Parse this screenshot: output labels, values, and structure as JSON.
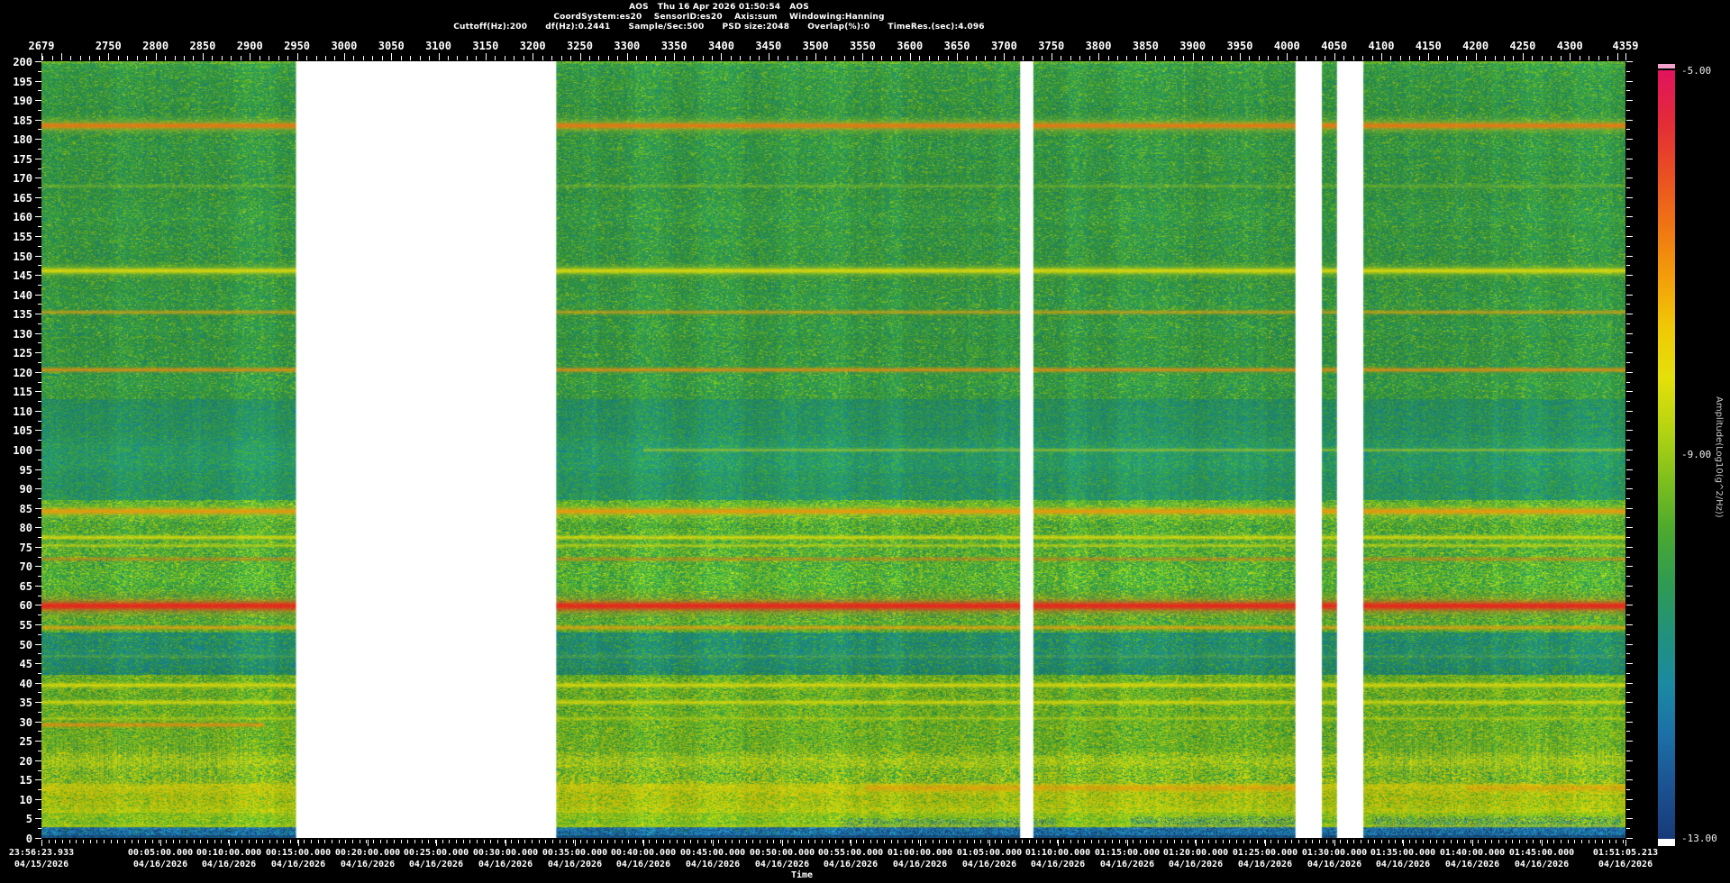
{
  "header": {
    "line1": "AOS   Thu 16 Apr 2026 01:50:54   AOS",
    "line2": "CoordSystem:es20    SensorID:es20    Axis:sum    Windowing:Hanning",
    "line3": "Cuttoff(Hz):200      df(Hz):0.2441      Sample/Sec:500      PSD size:2048      Overlap(%):0      TimeRes.(sec):4.096"
  },
  "colorbar": {
    "labels": [
      "-5.00",
      "-9.00",
      "-13.00"
    ],
    "title": "Amplitude(Log10(g^2/Hz))",
    "top_cap_color": "#f2a2ca",
    "bottom_cap_color": "#ffffff",
    "stops": [
      "#e1135e",
      "#e32b38",
      "#e94e22",
      "#ef7314",
      "#f39c0a",
      "#f0c806",
      "#e4e00a",
      "#b5d411",
      "#7fbf1d",
      "#4aa92e",
      "#2f9b52",
      "#21917b",
      "#1b89a2",
      "#1c6fa6",
      "#1b5291",
      "#173a78"
    ]
  },
  "chart_data": {
    "type": "heatmap",
    "subtype": "spectrogram",
    "title": "AOS  Thu 16 Apr 2026 01:50:54  AOS",
    "grid": false,
    "legend_position": "colorbar-right",
    "x_axis": {
      "label": "Time",
      "record_start": 2679,
      "record_end": 4359,
      "record_tick_labels": [
        "2679",
        "2750",
        "2800",
        "2850",
        "2900",
        "2950",
        "3000",
        "3050",
        "3100",
        "3150",
        "3200",
        "3250",
        "3300",
        "3350",
        "3400",
        "3450",
        "3500",
        "3550",
        "3600",
        "3650",
        "3700",
        "3750",
        "3800",
        "3850",
        "3900",
        "3950",
        "4000",
        "4050",
        "4100",
        "4150",
        "4200",
        "4250",
        "4300",
        "4359"
      ],
      "minor_tick_step_records": 10,
      "major_tick_step_records": 50,
      "duration_sec": 6881.3,
      "minor_tick_step_sec": 30,
      "time_labels": [
        {
          "time": "23:56:23.933",
          "date": "04/15/2026",
          "sec": 0
        },
        {
          "time": "00:05:00.000",
          "date": "04/16/2026",
          "sec": 516.1
        },
        {
          "time": "00:10:00.000",
          "date": "04/16/2026",
          "sec": 816.1
        },
        {
          "time": "00:15:00.000",
          "date": "04/16/2026",
          "sec": 1116.1
        },
        {
          "time": "00:20:00.000",
          "date": "04/16/2026",
          "sec": 1416.1
        },
        {
          "time": "00:25:00.000",
          "date": "04/16/2026",
          "sec": 1716.1
        },
        {
          "time": "00:30:00.000",
          "date": "04/16/2026",
          "sec": 2016.1
        },
        {
          "time": "00:35:00.000",
          "date": "04/16/2026",
          "sec": 2316.1
        },
        {
          "time": "00:40:00.000",
          "date": "04/16/2026",
          "sec": 2616.1
        },
        {
          "time": "00:45:00.000",
          "date": "04/16/2026",
          "sec": 2916.1
        },
        {
          "time": "00:50:00.000",
          "date": "04/16/2026",
          "sec": 3216.1
        },
        {
          "time": "00:55:00.000",
          "date": "04/16/2026",
          "sec": 3516.1
        },
        {
          "time": "01:00:00.000",
          "date": "04/16/2026",
          "sec": 3816.1
        },
        {
          "time": "01:05:00.000",
          "date": "04/16/2026",
          "sec": 4116.1
        },
        {
          "time": "01:10:00.000",
          "date": "04/16/2026",
          "sec": 4416.1
        },
        {
          "time": "01:15:00.000",
          "date": "04/16/2026",
          "sec": 4716.1
        },
        {
          "time": "01:20:00.000",
          "date": "04/16/2026",
          "sec": 5016.1
        },
        {
          "time": "01:25:00.000",
          "date": "04/16/2026",
          "sec": 5316.1
        },
        {
          "time": "01:30:00.000",
          "date": "04/16/2026",
          "sec": 5616.1
        },
        {
          "time": "01:35:00.000",
          "date": "04/16/2026",
          "sec": 5916.1
        },
        {
          "time": "01:40:00.000",
          "date": "04/16/2026",
          "sec": 6216.1
        },
        {
          "time": "01:45:00.000",
          "date": "04/16/2026",
          "sec": 6516.1
        },
        {
          "time": "01:51:05.213",
          "date": "04/16/2026",
          "sec": 6881.3
        }
      ]
    },
    "y_axis": {
      "unit": "Hz",
      "min": 0,
      "max": 200,
      "tick_step": 5,
      "minor_tick_step": 2.5,
      "tick_labels": [
        "200",
        "195",
        "190",
        "185",
        "180",
        "175",
        "170",
        "165",
        "160",
        "155",
        "150",
        "145",
        "140",
        "135",
        "130",
        "125",
        "120",
        "115",
        "110",
        "105",
        "100",
        "95",
        "90",
        "85",
        "80",
        "75",
        "70",
        "65",
        "60",
        "55",
        "50",
        "45",
        "40",
        "35",
        "30",
        "25",
        "20",
        "15",
        "10",
        "5",
        "0"
      ]
    },
    "z_axis": {
      "label": "Amplitude(Log10(g^2/Hz))",
      "max": -5.0,
      "mid": -9.0,
      "min": -13.0
    },
    "gaps_records": [
      [
        2949,
        3225
      ],
      [
        3717,
        3731
      ],
      [
        4009,
        4037
      ],
      [
        4053,
        4081
      ]
    ],
    "tonals": [
      {
        "f": 183.6,
        "hw": 0.5,
        "color": "#ee7311",
        "alpha": 0.92,
        "halo": "#e6d80c"
      },
      {
        "f": 168.0,
        "hw": 0.3,
        "color": "#c9d80e",
        "alpha": 0.3
      },
      {
        "f": 146.2,
        "hw": 0.45,
        "color": "#e4dc0a",
        "alpha": 0.88,
        "halo": "#bcd410"
      },
      {
        "f": 135.5,
        "hw": 0.35,
        "color": "#f0a30a",
        "alpha": 0.68
      },
      {
        "f": 120.6,
        "hw": 0.4,
        "color": "#f08c0e",
        "alpha": 0.82
      },
      {
        "f": 99.9,
        "hw": 0.28,
        "color": "#d8d80c",
        "alpha": 0.5,
        "x0": 0.38,
        "x1": 1
      },
      {
        "f": 84.2,
        "hw": 0.5,
        "color": "#f2940c",
        "alpha": 0.88,
        "halo": "#e4dc0a"
      },
      {
        "f": 77.6,
        "hw": 0.38,
        "color": "#e4dc0a",
        "alpha": 0.85
      },
      {
        "f": 75.5,
        "hw": 0.3,
        "color": "#dcd90c",
        "alpha": 0.62
      },
      {
        "f": 71.9,
        "hw": 0.35,
        "color": "#ee7311",
        "alpha": 0.55
      },
      {
        "f": 59.8,
        "hw": 0.7,
        "color": "#e8231c",
        "alpha": 1.0,
        "halo": "#f07a10"
      },
      {
        "f": 54.2,
        "hw": 0.38,
        "color": "#f0a30a",
        "alpha": 0.78
      },
      {
        "f": 46.8,
        "hw": 0.3,
        "color": "#b8d412",
        "alpha": 0.3,
        "speckle": true
      },
      {
        "f": 39.5,
        "hw": 0.42,
        "color": "#e4dc0a",
        "alpha": 0.85
      },
      {
        "f": 35.1,
        "hw": 0.38,
        "color": "#e4dc0a",
        "alpha": 0.78
      },
      {
        "f": 30.8,
        "hw": 0.3,
        "color": "#d0d80d",
        "alpha": 0.5
      },
      {
        "f": 29.2,
        "hw": 0.38,
        "color": "#f08c0e",
        "alpha": 0.8,
        "x0": 0,
        "x1": 0.14
      },
      {
        "f": 19.8,
        "hw": 1.2,
        "color": "#dcd90c",
        "alpha": 0.5,
        "speckle": true
      },
      {
        "f": 13.1,
        "hw": 1.0,
        "color": "#e6ca0a",
        "alpha": 0.6,
        "speckle": true
      },
      {
        "f": 13.0,
        "hw": 0.5,
        "color": "#f0820e",
        "alpha": 0.75,
        "x0": 0.52,
        "x1": 0.8,
        "speckle": true
      },
      {
        "f": 13.0,
        "hw": 0.5,
        "color": "#f0820e",
        "alpha": 0.65,
        "x0": 0.9,
        "x1": 1,
        "speckle": true
      },
      {
        "f": 7.0,
        "hw": 1.3,
        "color": "#c6d30d",
        "alpha": 0.38,
        "speckle": true
      },
      {
        "f": 3.2,
        "hw": 0.3,
        "color": "#c9d80e",
        "alpha": 0.45
      }
    ],
    "bands": [
      {
        "fmin": 113,
        "fmax": 200.1,
        "colors": [
          "#2e9a48",
          "#27935e",
          "#3aa33c",
          "#54b12f",
          "#6fbc26",
          "#1f8d72",
          "#8cc41f"
        ],
        "weights": [
          26,
          16,
          20,
          14,
          7,
          12,
          5
        ]
      },
      {
        "fmin": 87,
        "fmax": 113,
        "colors": [
          "#21906a",
          "#1d8a78",
          "#2f9a4e",
          "#3ba23e",
          "#15809a",
          "#4aa832",
          "#27935e"
        ],
        "weights": [
          26,
          18,
          16,
          12,
          8,
          10,
          10
        ]
      },
      {
        "fmin": 53,
        "fmax": 87,
        "colors": [
          "#3fa43a",
          "#56b22e",
          "#76c023",
          "#2b9553",
          "#97c91a",
          "#21906c",
          "#b4d013"
        ],
        "weights": [
          24,
          20,
          16,
          14,
          12,
          8,
          6
        ]
      },
      {
        "fmin": 42,
        "fmax": 53,
        "colors": [
          "#1f8d78",
          "#17878f",
          "#27935f",
          "#3fa43a",
          "#56b22e",
          "#13809f"
        ],
        "weights": [
          30,
          16,
          20,
          16,
          9,
          9
        ]
      },
      {
        "fmin": 22,
        "fmax": 42,
        "colors": [
          "#5cb42c",
          "#7cc120",
          "#a2cb15",
          "#45aa38",
          "#2b9553",
          "#c4d20d"
        ],
        "weights": [
          24,
          22,
          16,
          16,
          10,
          12
        ]
      },
      {
        "fmin": 14,
        "fmax": 22,
        "colors": [
          "#6fbc26",
          "#97c91a",
          "#c4d20d",
          "#45aa38",
          "#2b9553",
          "#dcd90a"
        ],
        "weights": [
          22,
          20,
          16,
          18,
          12,
          12
        ]
      },
      {
        "fmin": 6.5,
        "fmax": 14,
        "colors": [
          "#a2cb15",
          "#c4d20d",
          "#dcd90a",
          "#76c023",
          "#56b22e",
          "#e8c80a"
        ],
        "weights": [
          22,
          24,
          18,
          14,
          12,
          10
        ]
      },
      {
        "fmin": 2.8,
        "fmax": 6.5,
        "colors": [
          "#7cc120",
          "#a2cb15",
          "#56b22e",
          "#c4d20d",
          "#45aa38"
        ],
        "weights": [
          26,
          24,
          20,
          16,
          14
        ]
      },
      {
        "fmin": 0,
        "fmax": 2.8,
        "colors": [
          "#1a63a0",
          "#1f86c0",
          "#15497e",
          "#27a0d0",
          "#1d8a74",
          "#2278b2"
        ],
        "weights": [
          28,
          20,
          18,
          10,
          10,
          14
        ]
      }
    ],
    "stripe_regions": [
      {
        "x0": 0,
        "x1": 0.137,
        "f0": 13,
        "f1": 28,
        "strength": 0.5
      },
      {
        "x0": 0.33,
        "x1": 0.52,
        "f0": 15,
        "f1": 26,
        "strength": 0.26
      },
      {
        "x0": 0.845,
        "x1": 1.0,
        "f0": 13,
        "f1": 28,
        "strength": 0.45
      }
    ],
    "blue_patches": [
      {
        "x0": 0.505,
        "x1": 0.64,
        "fmax": 5.0
      },
      {
        "x0": 0.688,
        "x1": 0.792,
        "fmax": 5.5
      },
      {
        "x0": 0.84,
        "x1": 0.997,
        "fmax": 5.5
      }
    ],
    "streaks": [
      {
        "x": 0.721,
        "f1": 130,
        "a": 0.26
      },
      {
        "x": 0.893,
        "f1": 140,
        "a": 0.24
      },
      {
        "x": 0.07,
        "f1": 168,
        "a": 0.12
      },
      {
        "x": 0.155,
        "f1": 175,
        "a": 0.12
      },
      {
        "x": 0.345,
        "f1": 178,
        "a": 0.1
      },
      {
        "x": 0.6,
        "f1": 180,
        "a": 0.1
      },
      {
        "x": 0.655,
        "f1": 172,
        "a": 0.12
      },
      {
        "x": 0.77,
        "f1": 175,
        "a": 0.1
      },
      {
        "x": 0.955,
        "f1": 170,
        "a": 0.12
      },
      {
        "x": 0.985,
        "f1": 160,
        "a": 0.1
      }
    ]
  }
}
